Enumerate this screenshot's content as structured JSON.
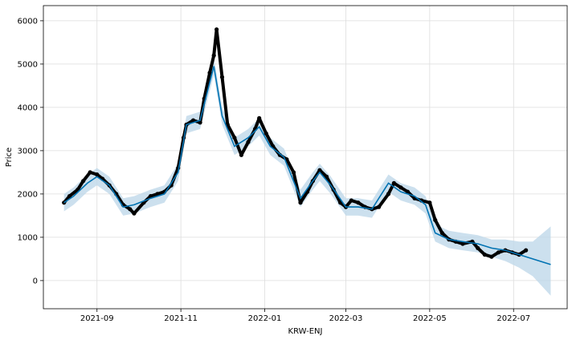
{
  "chart_data": {
    "type": "line",
    "title": "",
    "xlabel": "KRW-ENJ",
    "ylabel": "Price",
    "xlim": [
      "2021-07-24",
      "2022-08-09"
    ],
    "ylim": [
      -650,
      6350
    ],
    "grid": true,
    "x_ticks": [
      "2021-09",
      "2021-11",
      "2022-01",
      "2022-03",
      "2022-05",
      "2022-07"
    ],
    "y_ticks": [
      0,
      1000,
      2000,
      3000,
      4000,
      5000,
      6000
    ],
    "colors": {
      "forecast": "#0072b2",
      "uncertainty": "#bfd8ea",
      "observed": "#000000",
      "grid": "#dddddd"
    },
    "forecast": {
      "dates": [
        "2021-08-08",
        "2021-08-15",
        "2021-08-25",
        "2021-09-01",
        "2021-09-10",
        "2021-09-20",
        "2021-09-28",
        "2021-10-10",
        "2021-10-20",
        "2021-10-30",
        "2021-11-05",
        "2021-11-15",
        "2021-11-25",
        "2021-12-01",
        "2021-12-10",
        "2021-12-20",
        "2021-12-28",
        "2022-01-05",
        "2022-01-15",
        "2022-01-27",
        "2022-02-05",
        "2022-02-10",
        "2022-02-18",
        "2022-03-01",
        "2022-03-10",
        "2022-03-20",
        "2022-04-01",
        "2022-04-10",
        "2022-04-20",
        "2022-04-28",
        "2022-05-05",
        "2022-05-15",
        "2022-05-25",
        "2022-06-05",
        "2022-06-15",
        "2022-06-25",
        "2022-07-05",
        "2022-07-15",
        "2022-07-28"
      ],
      "values": [
        1800,
        1950,
        2250,
        2400,
        2200,
        1700,
        1750,
        1900,
        2000,
        2500,
        3600,
        3700,
        4950,
        3800,
        3100,
        3300,
        3550,
        3100,
        2850,
        1900,
        2300,
        2500,
        2200,
        1700,
        1700,
        1650,
        2250,
        2050,
        1950,
        1750,
        1100,
        950,
        900,
        850,
        750,
        700,
        600,
        500,
        370
      ],
      "lower": [
        1600,
        1750,
        2050,
        2200,
        2000,
        1500,
        1550,
        1700,
        1800,
        2300,
        3400,
        3500,
        4750,
        3600,
        2900,
        3100,
        3350,
        2900,
        2650,
        1700,
        2100,
        2300,
        2000,
        1500,
        1500,
        1450,
        2050,
        1850,
        1750,
        1550,
        900,
        750,
        700,
        650,
        550,
        450,
        300,
        100,
        -350
      ],
      "upper": [
        2000,
        2150,
        2450,
        2600,
        2400,
        1900,
        1950,
        2100,
        2200,
        2700,
        3800,
        3900,
        5150,
        4000,
        3300,
        3500,
        3750,
        3300,
        3050,
        2100,
        2500,
        2700,
        2400,
        1900,
        1900,
        1850,
        2450,
        2250,
        2150,
        1950,
        1300,
        1150,
        1100,
        1050,
        950,
        950,
        900,
        900,
        1250
      ]
    },
    "observed": {
      "dates": [
        "2021-08-08",
        "2021-08-12",
        "2021-08-18",
        "2021-08-22",
        "2021-08-27",
        "2021-09-01",
        "2021-09-05",
        "2021-09-10",
        "2021-09-15",
        "2021-09-20",
        "2021-09-25",
        "2021-09-28",
        "2021-10-05",
        "2021-10-10",
        "2021-10-15",
        "2021-10-20",
        "2021-10-25",
        "2021-10-30",
        "2021-11-03",
        "2021-11-05",
        "2021-11-10",
        "2021-11-15",
        "2021-11-18",
        "2021-11-22",
        "2021-11-25",
        "2021-11-27",
        "2021-12-01",
        "2021-12-05",
        "2021-12-10",
        "2021-12-15",
        "2021-12-20",
        "2021-12-25",
        "2021-12-28",
        "2022-01-02",
        "2022-01-07",
        "2022-01-12",
        "2022-01-17",
        "2022-01-22",
        "2022-01-27",
        "2022-02-01",
        "2022-02-05",
        "2022-02-10",
        "2022-02-15",
        "2022-02-20",
        "2022-02-25",
        "2022-03-01",
        "2022-03-05",
        "2022-03-10",
        "2022-03-15",
        "2022-03-20",
        "2022-03-25",
        "2022-04-01",
        "2022-04-05",
        "2022-04-10",
        "2022-04-15",
        "2022-04-20",
        "2022-04-25",
        "2022-05-01",
        "2022-05-05",
        "2022-05-10",
        "2022-05-15",
        "2022-05-20",
        "2022-05-25",
        "2022-06-01",
        "2022-06-05",
        "2022-06-10",
        "2022-06-15",
        "2022-06-20",
        "2022-06-25",
        "2022-06-30",
        "2022-07-05",
        "2022-07-10"
      ],
      "values": [
        1800,
        1950,
        2100,
        2300,
        2500,
        2450,
        2350,
        2200,
        2000,
        1750,
        1650,
        1550,
        1800,
        1950,
        2000,
        2050,
        2200,
        2600,
        3300,
        3600,
        3700,
        3650,
        4200,
        4800,
        5200,
        5800,
        4700,
        3600,
        3300,
        2900,
        3200,
        3500,
        3750,
        3400,
        3100,
        2900,
        2800,
        2500,
        1800,
        2050,
        2300,
        2550,
        2400,
        2100,
        1800,
        1700,
        1850,
        1800,
        1700,
        1650,
        1700,
        2000,
        2250,
        2150,
        2050,
        1900,
        1850,
        1800,
        1400,
        1100,
        950,
        900,
        850,
        900,
        750,
        600,
        550,
        650,
        700,
        650,
        600,
        700
      ]
    }
  }
}
